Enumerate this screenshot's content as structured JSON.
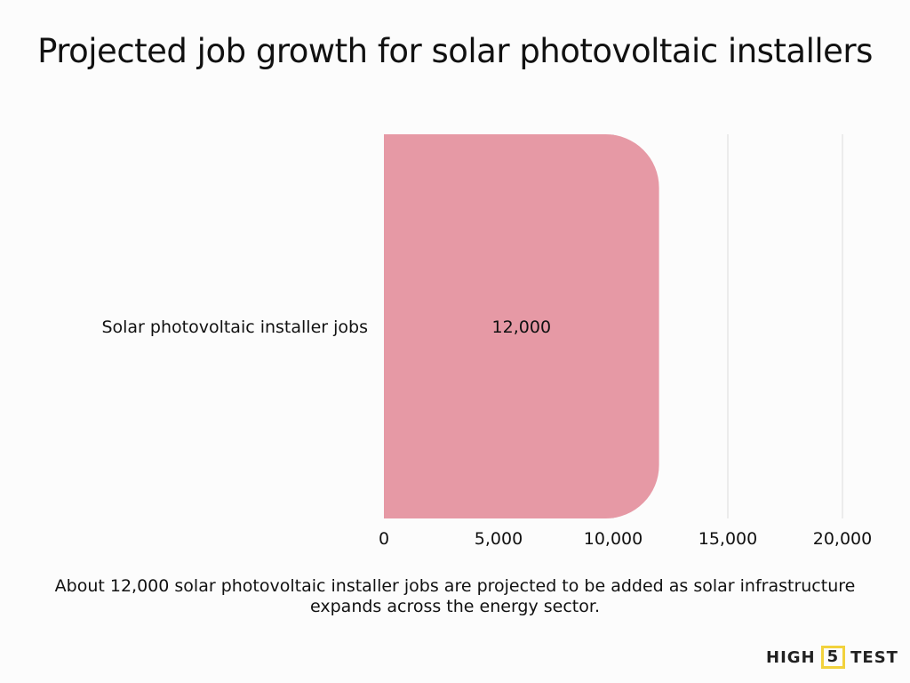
{
  "chart_data": {
    "type": "bar",
    "orientation": "horizontal",
    "title": "Projected job growth for solar photovoltaic installers",
    "categories": [
      "Solar photovoltaic installer jobs"
    ],
    "values": [
      12000
    ],
    "data_labels": [
      "12,000"
    ],
    "xlim": [
      0,
      20000
    ],
    "xticks": [
      0,
      5000,
      10000,
      15000,
      20000
    ],
    "xtick_labels": [
      "0",
      "5,000",
      "10,000",
      "15,000",
      "20,000"
    ],
    "xlabel": "",
    "ylabel": "",
    "grid": true,
    "bar_color": "#e699a5",
    "grid_color": "#e6e6e6"
  },
  "caption": "About 12,000 solar photovoltaic installer jobs are projected to be added as solar infrastructure expands across the energy sector.",
  "logo": {
    "part1": "HIGH",
    "part2": "5",
    "part3": "TEST",
    "accent": "#f2d23c"
  }
}
